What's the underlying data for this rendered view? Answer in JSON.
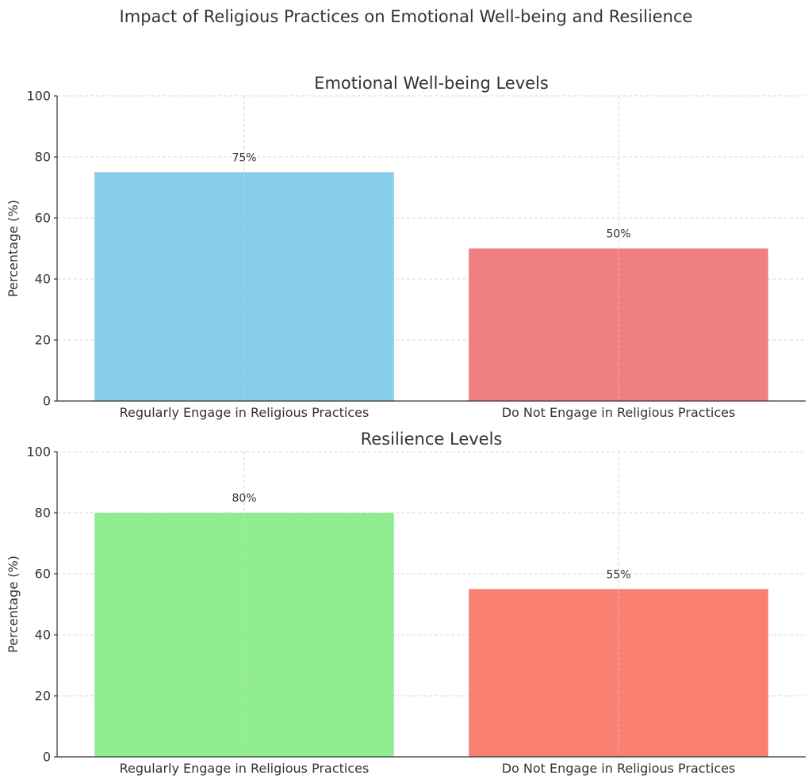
{
  "title": "Impact of Religious Practices on Emotional Well-being and Resilience",
  "chart_data": [
    {
      "type": "bar",
      "title": "Emotional Well-being Levels",
      "xlabel": "",
      "ylabel": "Percentage (%)",
      "categories": [
        "Regularly Engage in Religious Practices",
        "Do Not Engage in Religious Practices"
      ],
      "values": [
        75,
        50
      ],
      "data_labels": [
        "75%",
        "50%"
      ],
      "colors": [
        "#87CEEB",
        "#F08080"
      ],
      "ylim": [
        0,
        100
      ],
      "yticks": [
        0,
        20,
        40,
        60,
        80,
        100
      ],
      "grid": true
    },
    {
      "type": "bar",
      "title": "Resilience Levels",
      "xlabel": "",
      "ylabel": "Percentage (%)",
      "categories": [
        "Regularly Engage in Religious Practices",
        "Do Not Engage in Religious Practices"
      ],
      "values": [
        80,
        55
      ],
      "data_labels": [
        "80%",
        "55%"
      ],
      "colors": [
        "#90EE90",
        "#FA8072"
      ],
      "ylim": [
        0,
        100
      ],
      "yticks": [
        0,
        20,
        40,
        60,
        80,
        100
      ],
      "grid": true
    }
  ]
}
